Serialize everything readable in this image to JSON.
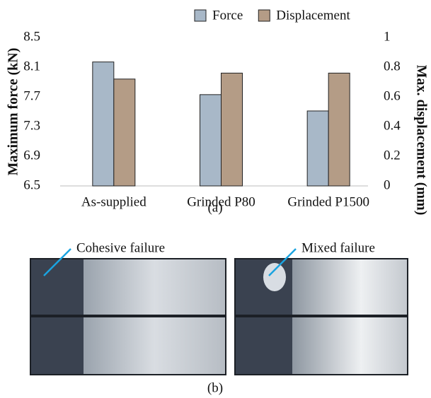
{
  "chart_data": {
    "type": "bar",
    "y_label": "Maximum force (kN)",
    "y2_label": "Max. displacement (mm)",
    "categories": [
      "As-supplied",
      "Grinded P80",
      "Grinded P1500"
    ],
    "series": [
      {
        "name": "Force",
        "color": "#a8b8c8",
        "values": [
          8.17,
          7.73,
          7.51
        ]
      },
      {
        "name": "Displacement",
        "color": "#b49c86",
        "values": [
          0.72,
          0.76,
          0.76
        ],
        "axis": "y2"
      }
    ],
    "ylim": [
      6.5,
      8.5
    ],
    "yticks": [
      6.5,
      6.9,
      7.3,
      7.7,
      8.1,
      8.5
    ],
    "y2lim": [
      0,
      1
    ],
    "y2ticks": [
      0,
      0.2,
      0.4,
      0.6,
      0.8,
      1
    ],
    "grid": false,
    "legend": "top"
  },
  "figure": {
    "panel_a": "(a)",
    "panel_b": "(b)",
    "photos": [
      {
        "label": "Cohesive failure"
      },
      {
        "label": "Mixed failure"
      }
    ]
  }
}
